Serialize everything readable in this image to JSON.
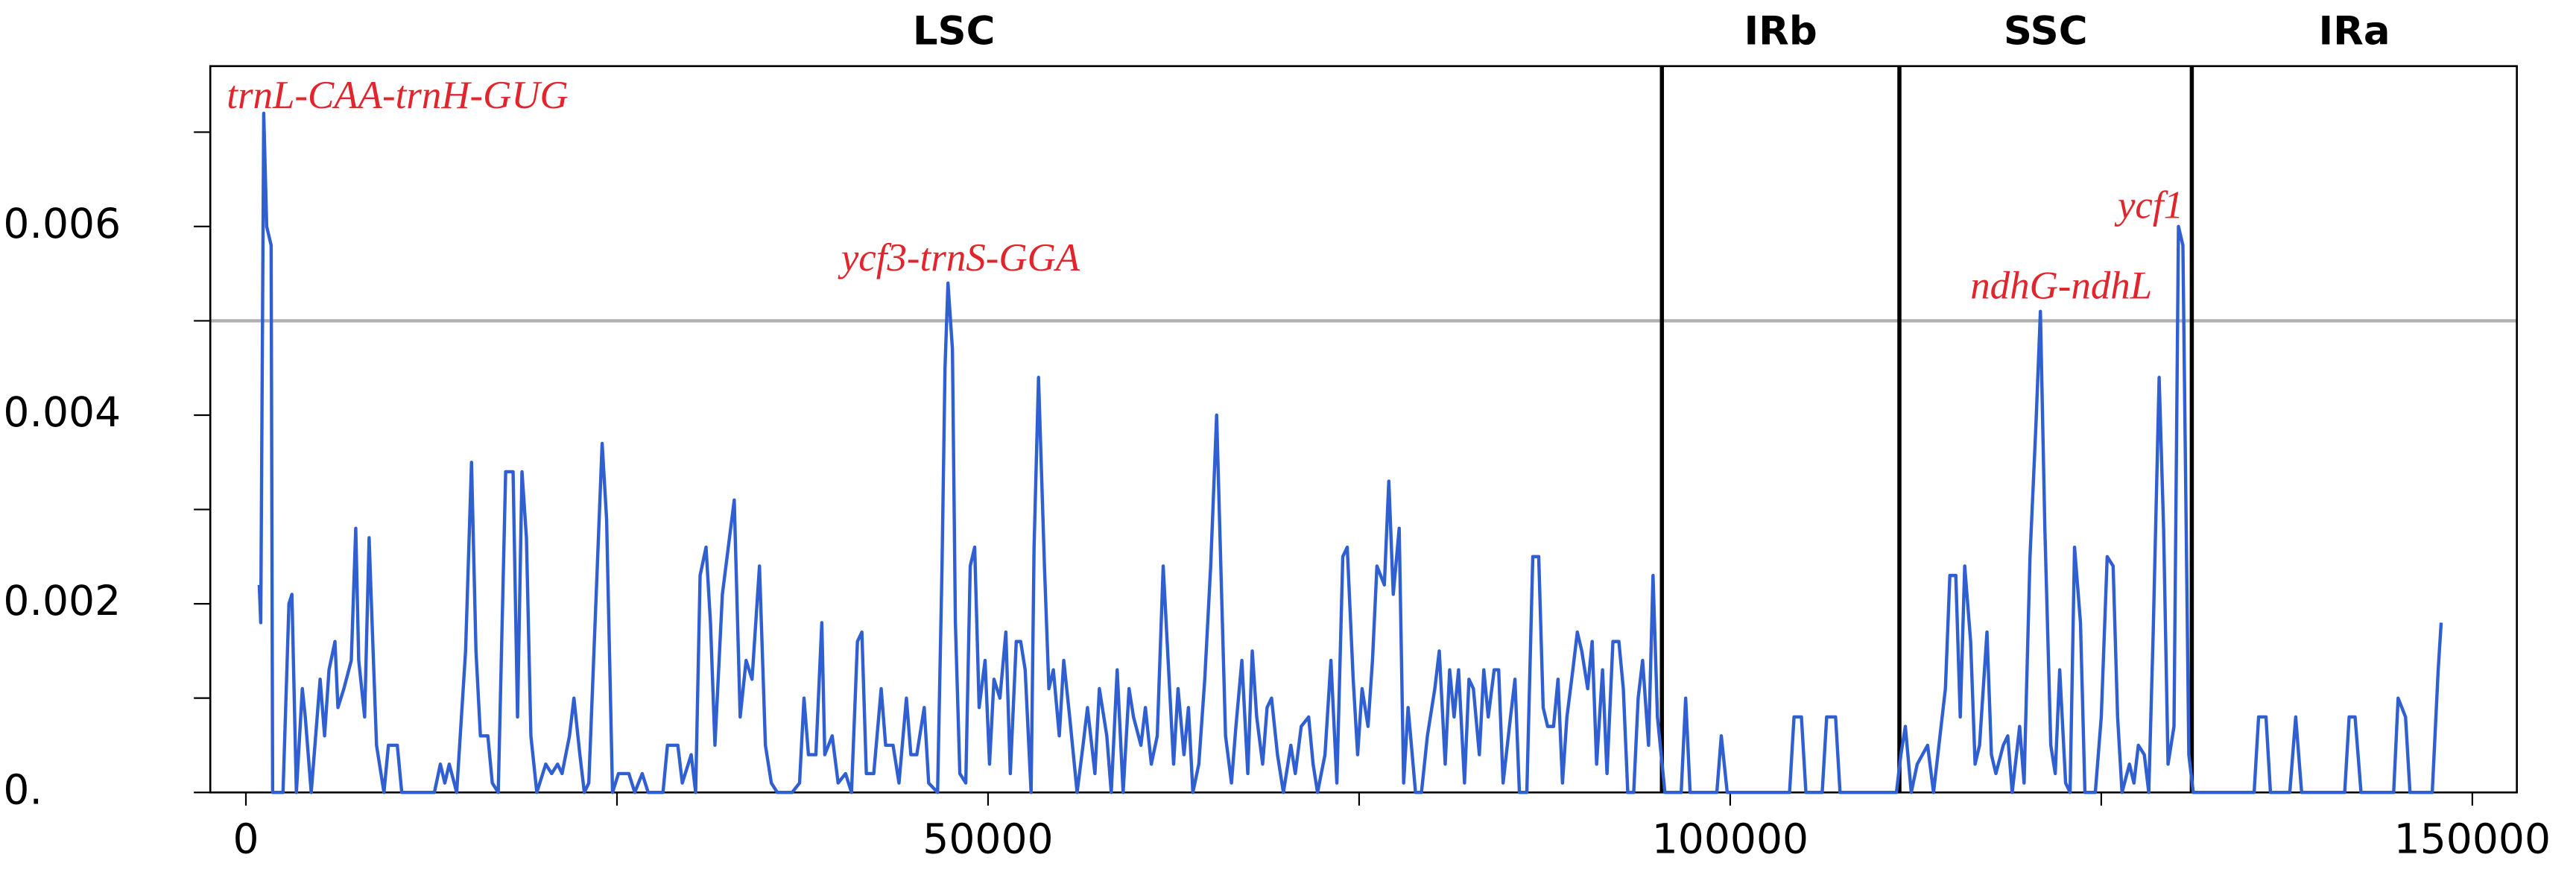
{
  "chart_data": {
    "type": "line",
    "xlim": [
      -2400,
      153000
    ],
    "ylim": [
      0,
      0.0077
    ],
    "xticks": [
      0,
      50000,
      100000,
      150000
    ],
    "xminorticks": [
      25000,
      75000,
      125000
    ],
    "yticks": [
      {
        "value": 0,
        "label": "0."
      },
      0.002,
      0.004,
      0.006
    ],
    "yminorticks": [
      0.001,
      0.003,
      0.005,
      0.007
    ],
    "threshold": 0.005,
    "threshold_color": "#b0b0b0",
    "boundaries": [
      95400,
      111400,
      131100
    ],
    "regions": [
      "LSC",
      "IRb",
      "SSC",
      "IRa"
    ],
    "annotations": [
      "trnL-CAA-trnH-GUG",
      "ycf3-trnS-GGA",
      "ycf1",
      "ndhG-ndhL"
    ],
    "annotation_color": "#e0262c",
    "series": [
      {
        "color": "#2f5fd0",
        "x": [
          900,
          1000,
          1200,
          1400,
          1700,
          1800,
          2500,
          2900,
          3100,
          3400,
          3800,
          4000,
          4400,
          5000,
          5300,
          5600,
          6000,
          6200,
          6600,
          7100,
          7400,
          7600,
          8000,
          8300,
          8500,
          8800,
          9300,
          9600,
          10200,
          10500,
          12700,
          13100,
          13400,
          13700,
          14200,
          14800,
          15200,
          15500,
          15800,
          16300,
          16600,
          17000,
          17500,
          18000,
          18300,
          18600,
          18900,
          19200,
          19600,
          20200,
          20600,
          21000,
          21300,
          21800,
          22100,
          22500,
          22800,
          23100,
          23700,
          24000,
          24300,
          24700,
          25100,
          25800,
          26200,
          26700,
          27100,
          28100,
          28400,
          29100,
          29400,
          30000,
          30300,
          30600,
          31000,
          31300,
          31600,
          32100,
          32500,
          32900,
          33300,
          33700,
          34100,
          34600,
          35000,
          35400,
          35800,
          36300,
          36800,
          37300,
          37600,
          37900,
          38400,
          38800,
          39000,
          39500,
          39900,
          40400,
          40800,
          41200,
          41500,
          41800,
          42300,
          42800,
          43100,
          43600,
          44000,
          44500,
          44800,
          45200,
          45700,
          46000,
          46600,
          46900,
          47100,
          47300,
          47600,
          47800,
          48100,
          48500,
          48800,
          49100,
          49400,
          49800,
          50100,
          50400,
          50800,
          51200,
          51500,
          51900,
          52200,
          52500,
          52900,
          53100,
          53400,
          53800,
          54100,
          54400,
          54800,
          55100,
          55500,
          56000,
          56400,
          56700,
          57200,
          57500,
          58000,
          58300,
          58700,
          59100,
          59500,
          59800,
          60300,
          60600,
          61000,
          61400,
          61800,
          62200,
          62500,
          62800,
          63200,
          63500,
          63800,
          64200,
          64600,
          65000,
          65400,
          65700,
          66000,
          66400,
          66700,
          67100,
          67500,
          67800,
          68100,
          68500,
          68800,
          69100,
          69500,
          69900,
          70400,
          70700,
          71100,
          71600,
          71900,
          72200,
          72700,
          73100,
          73500,
          73900,
          74200,
          74600,
          74900,
          75200,
          75600,
          75900,
          76200,
          76700,
          77000,
          77300,
          77700,
          78000,
          78300,
          78800,
          79200,
          79600,
          80100,
          80400,
          80800,
          81100,
          81400,
          81700,
          82100,
          82400,
          82700,
          83100,
          83400,
          83700,
          84100,
          84400,
          84700,
          85200,
          85500,
          85800,
          86300,
          86700,
          87100,
          87400,
          87700,
          88100,
          88400,
          88700,
          89000,
          89400,
          89700,
          90000,
          90400,
          90700,
          91000,
          91400,
          91700,
          92100,
          92500,
          92800,
          93100,
          93500,
          93800,
          94100,
          94500,
          94800,
          95100,
          95600,
          96700,
          97000,
          97300,
          99100,
          99400,
          99800,
          104000,
          104300,
          104800,
          105100,
          106200,
          106500,
          107100,
          107400,
          111200,
          111500,
          111800,
          112200,
          112600,
          113300,
          113700,
          114500,
          114800,
          115200,
          115500,
          115800,
          116200,
          116500,
          116800,
          117300,
          117600,
          117900,
          118400,
          118700,
          119000,
          119500,
          119800,
          120200,
          120600,
          120900,
          121200,
          121600,
          121900,
          122200,
          122600,
          122900,
          123200,
          123600,
          123900,
          124600,
          125000,
          125400,
          125800,
          126100,
          126400,
          126900,
          127200,
          127500,
          127900,
          128200,
          128500,
          128900,
          129200,
          129500,
          129900,
          130200,
          130500,
          130900,
          131200,
          135300,
          135600,
          136100,
          136400,
          137700,
          138100,
          138500,
          141400,
          141700,
          142100,
          142500,
          144700,
          145000,
          145500,
          145800,
          147300,
          147700,
          147900
        ],
        "values": [
          0.0022,
          0.0018,
          0.0072,
          0.006,
          0.0058,
          0,
          0,
          0.002,
          0.0021,
          0,
          0.0011,
          0.0008,
          0,
          0.0012,
          0.0006,
          0.0013,
          0.0016,
          0.0009,
          0.0011,
          0.0014,
          0.0028,
          0.0014,
          0.0008,
          0.0027,
          0.0018,
          0.0005,
          0,
          0.0005,
          0.0005,
          0,
          0,
          0.0003,
          0.0001,
          0.0003,
          0,
          0.0015,
          0.0035,
          0.0015,
          0.0006,
          0.0006,
          0.0001,
          0,
          0.0034,
          0.0034,
          0.0008,
          0.0034,
          0.0027,
          0.0006,
          0,
          0.0003,
          0.0002,
          0.0003,
          0.0002,
          0.0006,
          0.001,
          0.0004,
          0,
          0.0001,
          0.0025,
          0.0037,
          0.0029,
          0,
          0.0002,
          0.0002,
          0,
          0.0002,
          0,
          0,
          0.0005,
          0.0005,
          0.0001,
          0.0004,
          0,
          0.0023,
          0.0026,
          0.0018,
          0.0005,
          0.0021,
          0.0026,
          0.0031,
          0.0008,
          0.0014,
          0.0012,
          0.0024,
          0.0005,
          0.0001,
          0,
          0,
          0,
          0.0001,
          0.001,
          0.0004,
          0.0004,
          0.0018,
          0.0004,
          0.0006,
          0.0001,
          0.0002,
          0,
          0.0016,
          0.0017,
          0.0002,
          0.0002,
          0.0011,
          0.0005,
          0.0005,
          0.0001,
          0.001,
          0.0004,
          0.0004,
          0.0009,
          0.0001,
          0,
          0.0024,
          0.0045,
          0.0054,
          0.0047,
          0.0018,
          0.0002,
          0.0001,
          0.0024,
          0.0026,
          0.0009,
          0.0014,
          0.0003,
          0.0012,
          0.001,
          0.0017,
          0.0002,
          0.0016,
          0.0016,
          0.0013,
          0,
          0.0026,
          0.0044,
          0.0024,
          0.0011,
          0.0013,
          0.0006,
          0.0014,
          0.0008,
          0,
          0.0005,
          0.0009,
          0.0002,
          0.0011,
          0.0006,
          0,
          0.0013,
          0,
          0.0011,
          0.0008,
          0.0005,
          0.0009,
          0.0003,
          0.0006,
          0.0024,
          0.0012,
          0.0003,
          0.0011,
          0.0004,
          0.0009,
          0,
          0.0003,
          0.0012,
          0.0024,
          0.004,
          0.0023,
          0.0006,
          0.0001,
          0.0007,
          0.0014,
          0.0002,
          0.0015,
          0.0008,
          0.0003,
          0.0009,
          0.001,
          0.0004,
          0,
          0.0005,
          0.0002,
          0.0007,
          0.0008,
          0.0003,
          0,
          0.0004,
          0.0014,
          0.0001,
          0.0025,
          0.0026,
          0.0012,
          0.0004,
          0.0011,
          0.0007,
          0.0014,
          0.0024,
          0.0022,
          0.0033,
          0.0021,
          0.0028,
          0.0001,
          0.0009,
          0,
          0,
          0.0006,
          0.0011,
          0.0015,
          0.0003,
          0.0013,
          0.0008,
          0.0013,
          0.0001,
          0.0012,
          0.0011,
          0.0004,
          0.0013,
          0.0008,
          0.0013,
          0.0013,
          0.0001,
          0.0008,
          0.0012,
          0,
          0,
          0.0025,
          0.0025,
          0.0009,
          0.0007,
          0.0007,
          0.0012,
          0.0001,
          0.0008,
          0.0013,
          0.0017,
          0.0015,
          0.0011,
          0.0016,
          0.0003,
          0.0013,
          0.0002,
          0.0016,
          0.0016,
          0.0011,
          0,
          0,
          0.001,
          0.0014,
          0.0005,
          0.0023,
          0.0008,
          0,
          0,
          0.001,
          0,
          0,
          0.0006,
          0,
          0,
          0.0008,
          0.0008,
          0,
          0,
          0.0008,
          0.0008,
          0,
          0,
          0.0004,
          0.0007,
          0,
          0.0003,
          0.0005,
          0,
          0.0011,
          0.0023,
          0.0023,
          0.0008,
          0.0024,
          0.0016,
          0.0003,
          0.0005,
          0.0017,
          0.0004,
          0.0002,
          0.0005,
          0.0006,
          0,
          0.0007,
          0.0001,
          0.0025,
          0.0039,
          0.0051,
          0.0028,
          0.0005,
          0.0002,
          0.0013,
          0.0001,
          0,
          0.0026,
          0.0018,
          0,
          0,
          0.0008,
          0.0025,
          0.0024,
          0.0008,
          0,
          0.0003,
          0.0001,
          0.0005,
          0.0004,
          0,
          0.0017,
          0.0044,
          0.0028,
          0.0003,
          0.0007,
          0.006,
          0.0058,
          0.0004,
          0,
          0,
          0.0008,
          0.0008,
          0,
          0,
          0.0008,
          0,
          0,
          0.0008,
          0.0008,
          0,
          0,
          0.001,
          0.0008,
          0,
          0,
          0.0013,
          0.0018
        ]
      }
    ]
  }
}
